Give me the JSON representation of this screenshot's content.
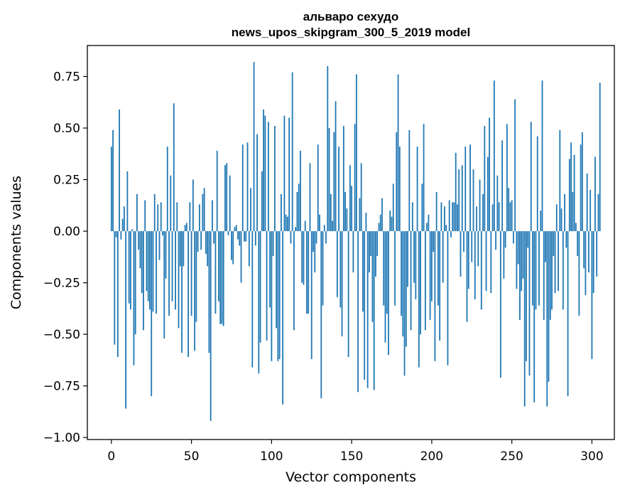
{
  "chart_data": {
    "type": "bar",
    "title": "альваро сехудо",
    "subtitle": "news_upos_skipgram_300_5_2019 model",
    "xlabel": "Vector components",
    "ylabel": "Components values",
    "xlim": [
      -15,
      314
    ],
    "ylim": [
      -1.01,
      0.9
    ],
    "xticks": [
      0,
      50,
      100,
      150,
      200,
      250,
      300
    ],
    "yticks": [
      -1.0,
      -0.75,
      -0.5,
      -0.25,
      0.0,
      0.25,
      0.5,
      0.75
    ],
    "ytick_labels": [
      "−1.00",
      "−0.75",
      "−0.50",
      "−0.25",
      "0.00",
      "0.25",
      "0.50",
      "0.75"
    ],
    "grid": false,
    "bar_color": "#1f77b4",
    "values": [
      0.41,
      0.49,
      -0.55,
      -0.03,
      -0.61,
      0.59,
      -0.04,
      0.06,
      0.12,
      -0.86,
      0.29,
      -0.35,
      -0.38,
      0.01,
      -0.65,
      -0.5,
      0.18,
      -0.09,
      -0.18,
      -0.3,
      -0.48,
      0.15,
      -0.29,
      -0.34,
      -0.38,
      -0.8,
      -0.39,
      0.18,
      -0.4,
      0.13,
      -0.14,
      0.14,
      -0.02,
      -0.52,
      -0.23,
      0.41,
      -0.41,
      0.27,
      -0.34,
      0.62,
      -0.38,
      0.14,
      -0.47,
      -0.17,
      -0.59,
      -0.17,
      0.03,
      0.04,
      -0.61,
      0.14,
      -0.41,
      0.25,
      -0.58,
      -0.44,
      -0.1,
      0.13,
      -0.09,
      0.18,
      0.21,
      -0.11,
      -0.17,
      -0.59,
      -0.92,
      0.15,
      -0.06,
      -0.4,
      0.39,
      -0.34,
      -0.45,
      -0.45,
      -0.46,
      0.32,
      0.33,
      -0.02,
      0.27,
      -0.14,
      -0.16,
      0.02,
      0.03,
      -0.04,
      -0.07,
      -0.25,
      0.42,
      -0.05,
      -0.05,
      0.43,
      -0.17,
      0.21,
      -0.66,
      0.82,
      -0.07,
      0.47,
      -0.69,
      -0.54,
      0.29,
      0.59,
      0.56,
      -0.53,
      0.53,
      -0.37,
      -0.63,
      -0.12,
      0.51,
      -0.47,
      -0.63,
      -0.62,
      0.18,
      -0.84,
      0.56,
      0.08,
      0.07,
      0.55,
      -0.06,
      0.77,
      -0.48,
      0.02,
      0.19,
      0.23,
      0.39,
      -0.25,
      -0.26,
      0.05,
      -0.4,
      -0.4,
      0.33,
      -0.62,
      -0.1,
      -0.2,
      -0.06,
      0.42,
      0.08,
      -0.81,
      -0.36,
      0.03,
      -0.06,
      0.8,
      0.5,
      0.18,
      0.05,
      0.48,
      0.63,
      -0.32,
      0.41,
      -0.37,
      -0.51,
      0.51,
      0.19,
      0.11,
      -0.61,
      0.32,
      0.22,
      -0.2,
      0.52,
      0.76,
      -0.78,
      0.16,
      0.33,
      -0.39,
      -0.72,
      0.09,
      -0.76,
      -0.2,
      -0.12,
      -0.44,
      -0.77,
      -0.22,
      -0.12,
      0.04,
      0.08,
      0.16,
      -0.36,
      -0.54,
      -0.4,
      -0.6,
      0.1,
      0.07,
      0.23,
      -0.36,
      0.48,
      0.76,
      0.41,
      -0.41,
      -0.51,
      -0.7,
      -0.56,
      -0.27,
      0.49,
      -0.48,
      0.14,
      -0.25,
      -0.33,
      0.41,
      -0.66,
      -0.5,
      0.23,
      0.52,
      -0.48,
      0.04,
      0.08,
      -0.43,
      -0.34,
      -0.1,
      -0.63,
      0.19,
      -0.36,
      -0.53,
      0.14,
      -0.25,
      0.12,
      0.03,
      -0.65,
      0.15,
      -0.03,
      0.14,
      0.14,
      0.38,
      0.13,
      0.3,
      -0.22,
      0.32,
      -0.1,
      0.41,
      -0.44,
      -0.28,
      0.42,
      -0.15,
      0.3,
      -0.33,
      0.12,
      -0.17,
      0.25,
      -0.38,
      0.18,
      0.51,
      -0.29,
      0.36,
      0.55,
      -0.3,
      0.13,
      0.73,
      -0.09,
      0.27,
      0.14,
      -0.71,
      0.44,
      -0.23,
      -0.08,
      0.52,
      0.21,
      0.14,
      0.15,
      -0.06,
      0.64,
      -0.28,
      -0.16,
      -0.43,
      -0.29,
      -0.23,
      -0.85,
      -0.63,
      -0.08,
      -0.7,
      0.53,
      -0.36,
      -0.83,
      -0.38,
      0.46,
      -0.36,
      0.1,
      0.73,
      -0.43,
      -0.15,
      -0.85,
      -0.73,
      -0.43,
      -0.38,
      -0.12,
      -0.3,
      0.13,
      -0.29,
      0.49,
      0.11,
      -0.38,
      0.18,
      -0.08,
      -0.8,
      0.35,
      0.43,
      0.19,
      0.37,
      0.04,
      -0.12,
      -0.41,
      0.42,
      0.48,
      -0.18,
      -0.31,
      0.28,
      -0.2,
      0.2,
      -0.62,
      -0.3,
      0.36,
      -0.22,
      0.18,
      0.72
    ]
  }
}
